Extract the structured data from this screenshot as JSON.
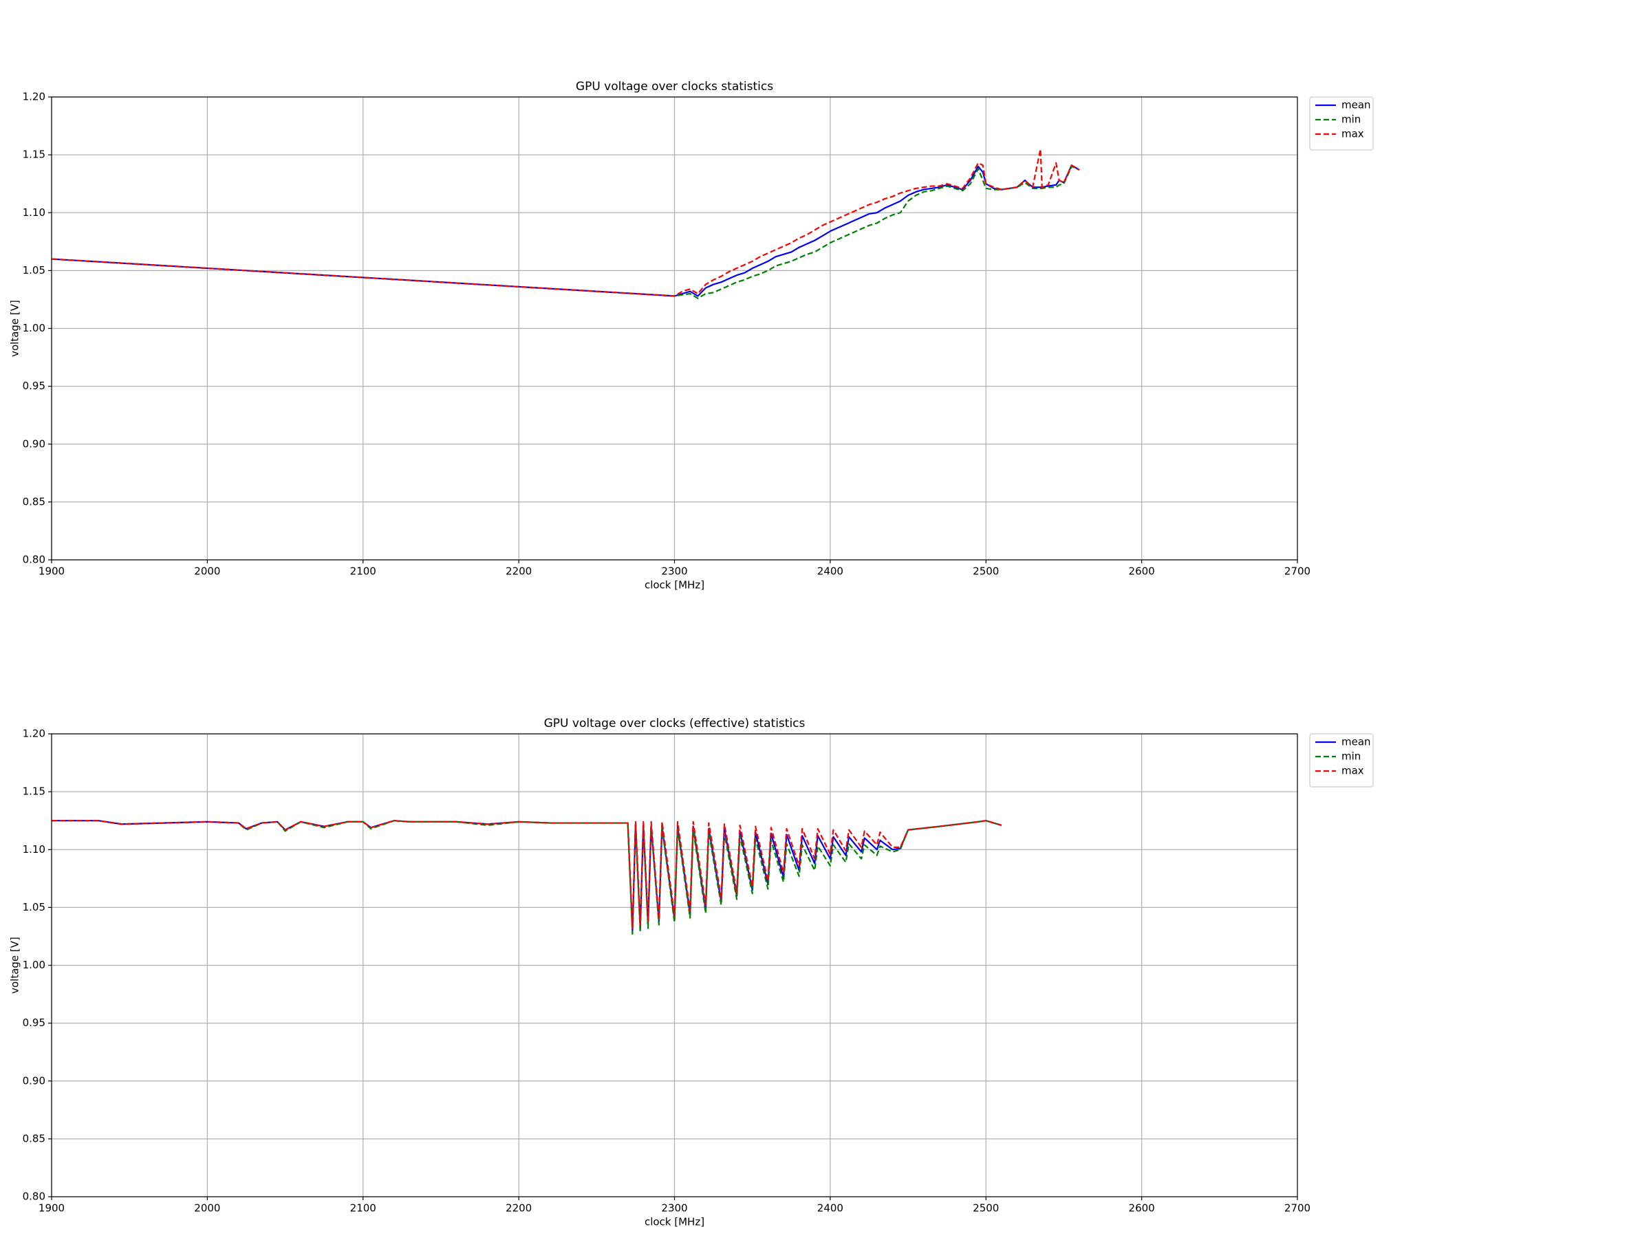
{
  "chart_data": [
    {
      "type": "line",
      "title": "GPU voltage over clocks statistics",
      "xlabel": "clock [MHz]",
      "ylabel": "voltage [V]",
      "x": [
        1900,
        2300,
        2305,
        2310,
        2315,
        2320,
        2325,
        2330,
        2335,
        2340,
        2345,
        2350,
        2355,
        2360,
        2365,
        2370,
        2375,
        2380,
        2385,
        2390,
        2395,
        2400,
        2405,
        2410,
        2415,
        2420,
        2425,
        2430,
        2435,
        2440,
        2445,
        2450,
        2455,
        2460,
        2465,
        2470,
        2475,
        2480,
        2485,
        2490,
        2495,
        2498,
        2500,
        2505,
        2510,
        2520,
        2525,
        2530,
        2535,
        2536,
        2540,
        2545,
        2547,
        2550,
        2555,
        2560
      ],
      "series": [
        {
          "name": "mean",
          "color": "#0000ff",
          "linestyle": "solid",
          "values": [
            1.06,
            1.028,
            1.03,
            1.032,
            1.028,
            1.035,
            1.038,
            1.04,
            1.043,
            1.046,
            1.048,
            1.052,
            1.055,
            1.058,
            1.062,
            1.064,
            1.066,
            1.07,
            1.073,
            1.076,
            1.08,
            1.084,
            1.087,
            1.09,
            1.093,
            1.096,
            1.099,
            1.1,
            1.104,
            1.107,
            1.11,
            1.115,
            1.118,
            1.12,
            1.121,
            1.122,
            1.124,
            1.122,
            1.12,
            1.128,
            1.14,
            1.135,
            1.125,
            1.121,
            1.12,
            1.122,
            1.128,
            1.122,
            1.122,
            1.122,
            1.123,
            1.124,
            1.128,
            1.126,
            1.141,
            1.137
          ]
        },
        {
          "name": "min",
          "color": "#008000",
          "linestyle": "dashed",
          "values": [
            1.06,
            1.028,
            1.029,
            1.03,
            1.026,
            1.03,
            1.031,
            1.034,
            1.037,
            1.04,
            1.042,
            1.045,
            1.047,
            1.05,
            1.054,
            1.056,
            1.058,
            1.061,
            1.064,
            1.066,
            1.07,
            1.074,
            1.077,
            1.08,
            1.083,
            1.086,
            1.089,
            1.091,
            1.095,
            1.098,
            1.1,
            1.11,
            1.115,
            1.118,
            1.119,
            1.121,
            1.123,
            1.121,
            1.119,
            1.125,
            1.138,
            1.128,
            1.121,
            1.12,
            1.12,
            1.122,
            1.126,
            1.121,
            1.121,
            1.121,
            1.122,
            1.122,
            1.124,
            1.125,
            1.14,
            1.137
          ]
        },
        {
          "name": "max",
          "color": "#ff0000",
          "linestyle": "dashed",
          "values": [
            1.06,
            1.028,
            1.032,
            1.034,
            1.03,
            1.038,
            1.042,
            1.045,
            1.049,
            1.052,
            1.055,
            1.058,
            1.062,
            1.065,
            1.068,
            1.071,
            1.074,
            1.078,
            1.081,
            1.085,
            1.089,
            1.092,
            1.095,
            1.098,
            1.101,
            1.104,
            1.107,
            1.109,
            1.112,
            1.114,
            1.117,
            1.119,
            1.121,
            1.122,
            1.123,
            1.123,
            1.125,
            1.123,
            1.121,
            1.13,
            1.143,
            1.141,
            1.125,
            1.122,
            1.12,
            1.122,
            1.128,
            1.122,
            1.155,
            1.122,
            1.124,
            1.143,
            1.128,
            1.126,
            1.141,
            1.137
          ]
        }
      ],
      "xlim": [
        1900,
        2700
      ],
      "xticks": [
        1900,
        2000,
        2100,
        2200,
        2300,
        2400,
        2500,
        2600,
        2700
      ],
      "ylim": [
        0.8,
        1.2
      ],
      "yticks": [
        {
          "value": 0.8,
          "label": "0.80"
        },
        0.85,
        {
          "value": 0.9,
          "label": "0.90"
        },
        0.95,
        {
          "value": 1.0,
          "label": "1.00"
        },
        1.05,
        {
          "value": 1.1,
          "label": "1.10"
        },
        1.15,
        {
          "value": 1.2,
          "label": "1.20"
        }
      ],
      "grid": true,
      "legend": "outside-upper-right"
    },
    {
      "type": "line",
      "title": "GPU voltage over clocks (effective) statistics",
      "xlabel": "clock [MHz]",
      "ylabel": "voltage [V]",
      "x": [
        1900,
        1930,
        1945,
        2000,
        2020,
        2025,
        2035,
        2045,
        2050,
        2060,
        2075,
        2090,
        2100,
        2105,
        2120,
        2130,
        2140,
        2160,
        2180,
        2200,
        2220,
        2240,
        2260,
        2270,
        2273,
        2275,
        2278,
        2280,
        2283,
        2285,
        2290,
        2292,
        2300,
        2302,
        2310,
        2312,
        2320,
        2322,
        2330,
        2332,
        2340,
        2342,
        2350,
        2352,
        2360,
        2362,
        2370,
        2372,
        2380,
        2382,
        2390,
        2392,
        2400,
        2402,
        2410,
        2412,
        2420,
        2422,
        2430,
        2432,
        2440,
        2445,
        2450,
        2470,
        2495,
        2500,
        2510
      ],
      "series": [
        {
          "name": "mean",
          "color": "#0000ff",
          "linestyle": "solid",
          "values": [
            1.125,
            1.125,
            1.122,
            1.124,
            1.123,
            1.118,
            1.123,
            1.124,
            1.117,
            1.124,
            1.12,
            1.124,
            1.124,
            1.119,
            1.125,
            1.124,
            1.124,
            1.124,
            1.122,
            1.124,
            1.123,
            1.123,
            1.123,
            1.123,
            1.03,
            1.122,
            1.032,
            1.121,
            1.035,
            1.12,
            1.038,
            1.12,
            1.04,
            1.12,
            1.044,
            1.12,
            1.048,
            1.118,
            1.055,
            1.118,
            1.06,
            1.116,
            1.065,
            1.115,
            1.07,
            1.114,
            1.076,
            1.113,
            1.082,
            1.112,
            1.088,
            1.112,
            1.092,
            1.111,
            1.095,
            1.111,
            1.098,
            1.11,
            1.1,
            1.108,
            1.1,
            1.101,
            1.117,
            1.12,
            1.124,
            1.125,
            1.121
          ]
        },
        {
          "name": "min",
          "color": "#008000",
          "linestyle": "dashed",
          "values": [
            1.125,
            1.125,
            1.122,
            1.124,
            1.123,
            1.117,
            1.123,
            1.124,
            1.116,
            1.124,
            1.119,
            1.124,
            1.124,
            1.118,
            1.125,
            1.124,
            1.124,
            1.124,
            1.121,
            1.124,
            1.123,
            1.123,
            1.123,
            1.123,
            1.027,
            1.122,
            1.029,
            1.121,
            1.032,
            1.12,
            1.035,
            1.119,
            1.037,
            1.118,
            1.041,
            1.117,
            1.045,
            1.115,
            1.052,
            1.114,
            1.057,
            1.112,
            1.062,
            1.11,
            1.066,
            1.108,
            1.072,
            1.105,
            1.077,
            1.104,
            1.082,
            1.103,
            1.086,
            1.104,
            1.089,
            1.105,
            1.092,
            1.104,
            1.095,
            1.103,
            1.098,
            1.1,
            1.117,
            1.12,
            1.124,
            1.125,
            1.121
          ]
        },
        {
          "name": "max",
          "color": "#ff0000",
          "linestyle": "dashed",
          "values": [
            1.125,
            1.125,
            1.122,
            1.124,
            1.123,
            1.118,
            1.123,
            1.124,
            1.117,
            1.124,
            1.12,
            1.124,
            1.124,
            1.119,
            1.125,
            1.124,
            1.124,
            1.124,
            1.122,
            1.124,
            1.123,
            1.123,
            1.123,
            1.123,
            1.032,
            1.124,
            1.035,
            1.124,
            1.038,
            1.124,
            1.04,
            1.124,
            1.043,
            1.124,
            1.047,
            1.124,
            1.052,
            1.123,
            1.058,
            1.122,
            1.063,
            1.121,
            1.068,
            1.12,
            1.073,
            1.119,
            1.08,
            1.118,
            1.086,
            1.118,
            1.092,
            1.118,
            1.096,
            1.117,
            1.099,
            1.117,
            1.102,
            1.116,
            1.104,
            1.115,
            1.102,
            1.102,
            1.117,
            1.12,
            1.124,
            1.125,
            1.121
          ]
        }
      ],
      "xlim": [
        1900,
        2700
      ],
      "xticks": [
        1900,
        2000,
        2100,
        2200,
        2300,
        2400,
        2500,
        2600,
        2700
      ],
      "ylim": [
        0.8,
        1.2
      ],
      "yticks": [
        {
          "value": 0.8,
          "label": "0.80"
        },
        0.85,
        {
          "value": 0.9,
          "label": "0.90"
        },
        0.95,
        {
          "value": 1.0,
          "label": "1.00"
        },
        1.05,
        {
          "value": 1.1,
          "label": "1.10"
        },
        1.15,
        {
          "value": 1.2,
          "label": "1.20"
        }
      ],
      "grid": true,
      "legend": "outside-upper-right"
    }
  ]
}
